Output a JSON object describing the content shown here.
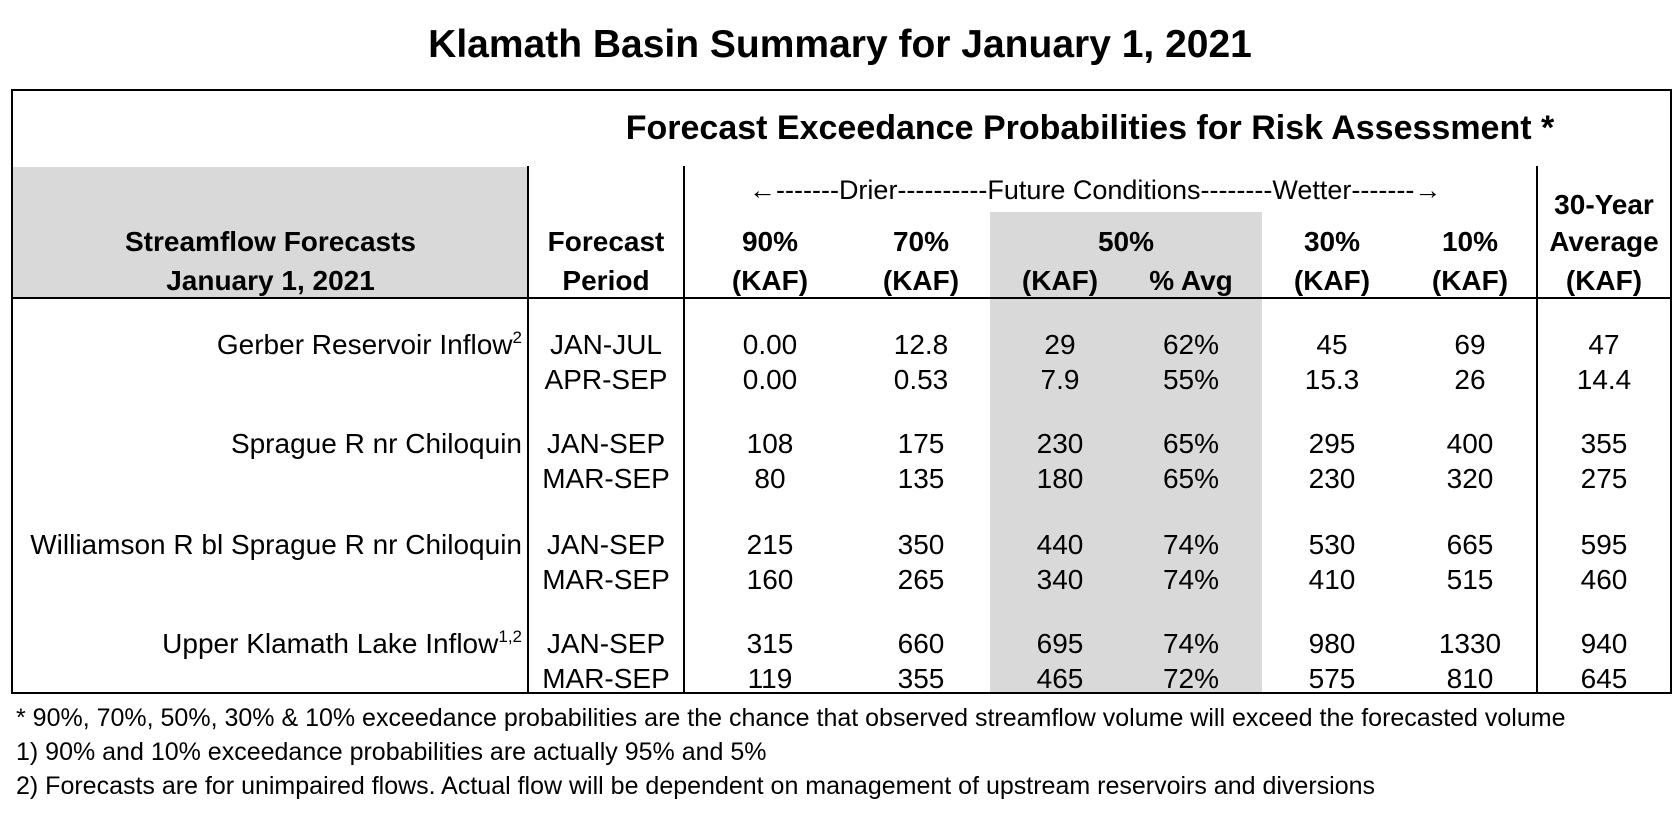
{
  "title": "Klamath Basin Summary for January 1, 2021",
  "section_title": "Forecast Exceedance Probabilities for Risk Assessment *",
  "arrow_text": "←-------Drier----------Future Conditions--------Wetter-------→",
  "headers": {
    "streamflow_line1": "Streamflow Forecasts",
    "streamflow_line2": "January 1, 2021",
    "period_line1": "Forecast",
    "period_line2": "Period",
    "p90": "90%",
    "p70": "70%",
    "p50": "50%",
    "p30": "30%",
    "p10": "10%",
    "unit": "(KAF)",
    "pct_avg": "% Avg",
    "avg_line1": "30-Year",
    "avg_line2": "Average",
    "avg_line3": "(KAF)"
  },
  "stations": [
    {
      "name": "Gerber Reservoir Inflow",
      "superscript": "2",
      "rows": [
        {
          "period": "JAN-JUL",
          "p90": "0.00",
          "p70": "12.8",
          "p50": "29",
          "pct": "62%",
          "p30": "45",
          "p10": "69",
          "avg": "47"
        },
        {
          "period": "APR-SEP",
          "p90": "0.00",
          "p70": "0.53",
          "p50": "7.9",
          "pct": "55%",
          "p30": "15.3",
          "p10": "26",
          "avg": "14.4"
        }
      ]
    },
    {
      "name": "Sprague R nr Chiloquin",
      "superscript": "",
      "rows": [
        {
          "period": "JAN-SEP",
          "p90": "108",
          "p70": "175",
          "p50": "230",
          "pct": "65%",
          "p30": "295",
          "p10": "400",
          "avg": "355"
        },
        {
          "period": "MAR-SEP",
          "p90": "80",
          "p70": "135",
          "p50": "180",
          "pct": "65%",
          "p30": "230",
          "p10": "320",
          "avg": "275"
        }
      ]
    },
    {
      "name": "Williamson R bl Sprague R nr Chiloquin",
      "superscript": "",
      "rows": [
        {
          "period": "JAN-SEP",
          "p90": "215",
          "p70": "350",
          "p50": "440",
          "pct": "74%",
          "p30": "530",
          "p10": "665",
          "avg": "595"
        },
        {
          "period": "MAR-SEP",
          "p90": "160",
          "p70": "265",
          "p50": "340",
          "pct": "74%",
          "p30": "410",
          "p10": "515",
          "avg": "460"
        }
      ]
    },
    {
      "name": "Upper Klamath Lake Inflow",
      "superscript": "1,2",
      "rows": [
        {
          "period": "JAN-SEP",
          "p90": "315",
          "p70": "660",
          "p50": "695",
          "pct": "74%",
          "p30": "980",
          "p10": "1330",
          "avg": "940"
        },
        {
          "period": "MAR-SEP",
          "p90": "119",
          "p70": "355",
          "p50": "465",
          "pct": "72%",
          "p30": "575",
          "p10": "810",
          "avg": "645"
        }
      ]
    }
  ],
  "footnotes": [
    "* 90%, 70%, 50%, 30% & 10% exceedance probabilities are the chance that observed streamflow volume will exceed the forecasted volume",
    "1) 90% and 10% exceedance probabilities are actually 95% and 5%",
    "2) Forecasts are for unimpaired flows.  Actual flow will be dependent on management of upstream reservoirs and diversions"
  ]
}
